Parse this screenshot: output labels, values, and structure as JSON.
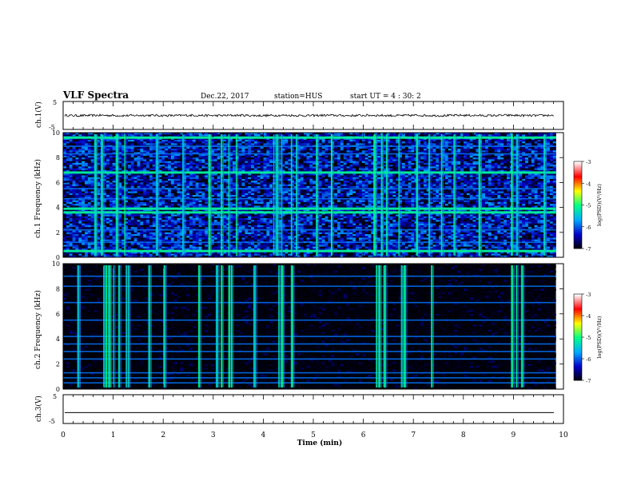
{
  "header": {
    "title": "VLF Spectra",
    "date": "Dec.22, 2017",
    "station": "station=HUS",
    "start": "start UT = 4 : 30: 2"
  },
  "colors": {
    "background": "#ffffff",
    "axes": "#000000",
    "spectrogram_floor": "#000010",
    "colormap": [
      "#000000",
      "#0000c8",
      "#00aaff",
      "#00ff88",
      "#ffff00",
      "#ff0000",
      "#ffffff"
    ]
  },
  "chart_data": [
    {
      "type": "line",
      "id": "ch1-waveform",
      "ylabel": "ch.1(V)",
      "ylim": [
        -5,
        5
      ],
      "yticks": [
        "5",
        "-5"
      ],
      "xlim": [
        0,
        10
      ],
      "level": 0,
      "noise_amplitude": 0.4
    },
    {
      "type": "heatmap",
      "id": "ch1-spectrogram",
      "ylabel": "ch.1 Frequency (kHz)",
      "ylim": [
        0,
        10
      ],
      "yticks": [
        "0",
        "2",
        "4",
        "6",
        "8",
        "10"
      ],
      "xlim": [
        0,
        10
      ],
      "background_log_psd": -6.4,
      "strong_lines_khz": [
        3.6,
        3.9,
        6.8,
        9.6,
        0.5
      ],
      "weak_lines_khz": [
        1.2,
        2.2,
        4.7,
        5.5,
        8.3,
        8.9
      ],
      "bursts_min": [
        0.62,
        0.75,
        1.05,
        1.22,
        1.85,
        2.38,
        2.9,
        3.15,
        3.3,
        3.45,
        4.2,
        4.25,
        4.35,
        4.55,
        4.65,
        5.05,
        5.35,
        6.2,
        6.35,
        6.45,
        6.7,
        7.05,
        7.3,
        7.55,
        7.8,
        8.3,
        8.95,
        9.05,
        9.6
      ],
      "colorbar": {
        "label": "log(PSD)(V²/Hz)",
        "range": [
          -7,
          -3
        ],
        "ticks": [
          "-3",
          "-4",
          "-5",
          "-6",
          "-7"
        ]
      }
    },
    {
      "type": "heatmap",
      "id": "ch2-spectrogram",
      "ylabel": "ch.2 Frequency (kHz)",
      "ylim": [
        0,
        10
      ],
      "yticks": [
        "0",
        "2",
        "4",
        "6",
        "8",
        "10"
      ],
      "xlim": [
        0,
        10
      ],
      "background_log_psd": -7,
      "weak_lines_khz": [
        0.5,
        0.9,
        1.3,
        2.4,
        3.0,
        3.6,
        4.2,
        5.5,
        6.9,
        8.2,
        9.0
      ],
      "bursts_min": [
        0.28,
        0.8,
        0.85,
        0.9,
        1.0,
        1.1,
        1.25,
        1.3,
        1.7,
        2.0,
        2.7,
        3.05,
        3.15,
        3.3,
        3.35,
        3.8,
        4.3,
        4.35,
        4.55,
        6.25,
        6.3,
        6.4,
        6.75,
        6.8,
        7.35,
        8.95,
        9.05,
        9.15
      ],
      "colorbar": {
        "label": "log(PSD)(V²/Hz)",
        "range": [
          -7,
          -3
        ],
        "ticks": [
          "-3",
          "-4",
          "-5",
          "-6",
          "-7"
        ]
      }
    },
    {
      "type": "line",
      "id": "ch3-waveform",
      "ylabel": "ch.3(V)",
      "ylim": [
        -5,
        5
      ],
      "yticks": [
        "5",
        "-5"
      ],
      "xlim": [
        0,
        10
      ],
      "level": -1.2,
      "noise_amplitude": 0
    }
  ],
  "xaxis": {
    "label": "Time (min)",
    "ticks": [
      "0",
      "1",
      "2",
      "3",
      "4",
      "5",
      "6",
      "7",
      "8",
      "9",
      "10"
    ]
  }
}
